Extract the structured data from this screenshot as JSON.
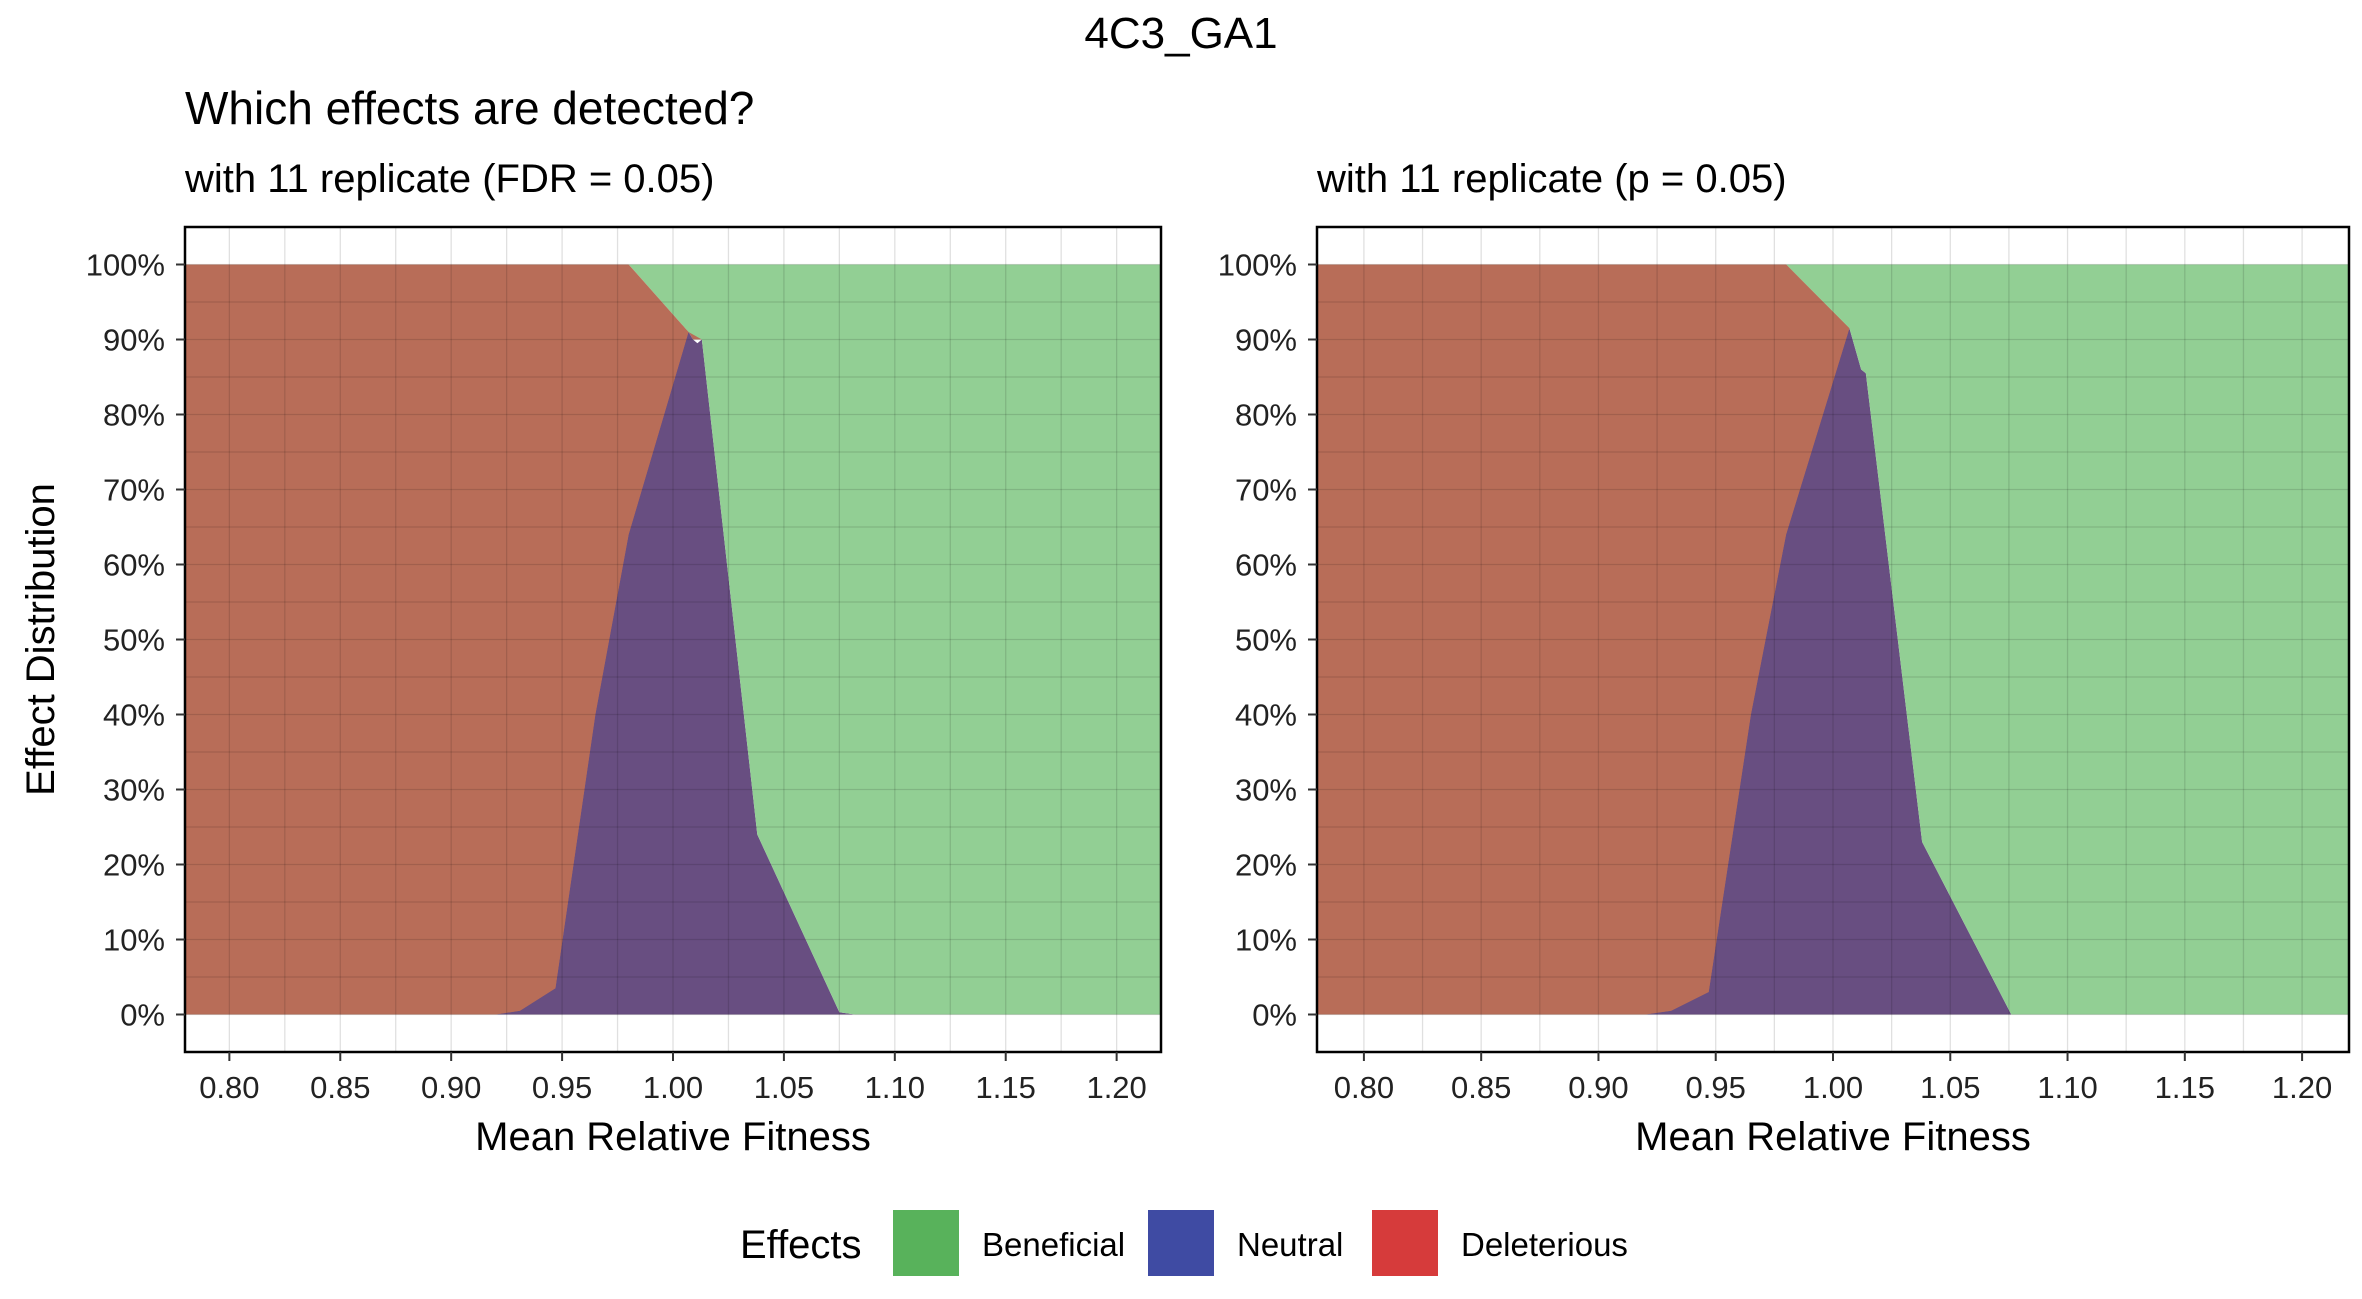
{
  "figure": {
    "title": "4C3_GA1",
    "subtitle": "Which effects are detected?"
  },
  "legend": {
    "title": "Effects",
    "placement": "bottom",
    "items": [
      {
        "label": "Beneficial",
        "color": "#58b25b"
      },
      {
        "label": "Neutral",
        "color": "#3f4ba3"
      },
      {
        "label": "Deleterious",
        "color": "#d63b3b"
      }
    ]
  },
  "chart_data": [
    {
      "type": "area",
      "title": "with 11 replicate (FDR = 0.05)",
      "xlabel": "Mean Relative Fitness",
      "ylabel": "Effect Distribution",
      "xlim": [
        0.78,
        1.22
      ],
      "ylim": [
        -0.05,
        1.05
      ],
      "xticks": [
        0.8,
        0.85,
        0.9,
        0.95,
        1.0,
        1.05,
        1.1,
        1.15,
        1.2
      ],
      "xtick_labels": [
        "0.80",
        "0.85",
        "0.90",
        "0.95",
        "1.00",
        "1.05",
        "1.10",
        "1.15",
        "1.20"
      ],
      "yticks": [
        0,
        0.1,
        0.2,
        0.3,
        0.4,
        0.5,
        0.6,
        0.7,
        0.8,
        0.9,
        1.0
      ],
      "ytick_labels": [
        "0%",
        "10%",
        "20%",
        "30%",
        "40%",
        "50%",
        "60%",
        "70%",
        "80%",
        "90%",
        "100%"
      ],
      "grid": true,
      "stacked": true,
      "series": [
        {
          "name": "Deleterious",
          "fill": "#b86d58",
          "points": [
            [
              0.78,
              1.0
            ],
            [
              0.8,
              1.0
            ],
            [
              0.85,
              1.0
            ],
            [
              0.9,
              1.0
            ],
            [
              0.92,
              1.0
            ],
            [
              0.931,
              1.0
            ],
            [
              0.947,
              1.0
            ],
            [
              0.965,
              1.0
            ],
            [
              0.98,
              0.997
            ],
            [
              1.007,
              0.91
            ],
            [
              1.009,
              0.9
            ],
            [
              1.013,
              0.9
            ],
            [
              1.038,
              0.9
            ],
            [
              1.075,
              0.9
            ],
            [
              1.22,
              0.9
            ]
          ],
          "lower": [
            [
              0.78,
              0.0
            ],
            [
              0.9,
              0.0
            ],
            [
              0.92,
              0.0
            ],
            [
              0.931,
              0.005
            ],
            [
              0.947,
              0.035
            ],
            [
              0.965,
              0.4
            ],
            [
              0.98,
              0.64
            ],
            [
              1.007,
              0.91
            ],
            [
              1.009,
              0.9
            ],
            [
              1.013,
              0.9
            ],
            [
              1.22,
              0.9
            ]
          ]
        },
        {
          "name": "Neutral",
          "fill": "#684e81",
          "points": [
            [
              0.92,
              0.0
            ],
            [
              0.931,
              0.005
            ],
            [
              0.947,
              0.035
            ],
            [
              0.965,
              0.4
            ],
            [
              0.98,
              0.64
            ],
            [
              1.007,
              0.91
            ],
            [
              1.009,
              0.9
            ],
            [
              1.011,
              0.895
            ],
            [
              1.013,
              0.9
            ],
            [
              1.038,
              0.24
            ],
            [
              1.075,
              0.003
            ],
            [
              1.082,
              0.0
            ]
          ]
        },
        {
          "name": "Beneficial",
          "fill": "#92cf94",
          "points": [
            [
              0.98,
              1.0
            ],
            [
              1.22,
              1.0
            ],
            [
              1.22,
              0.0
            ],
            [
              1.082,
              0.0
            ],
            [
              1.075,
              0.003
            ],
            [
              1.038,
              0.24
            ],
            [
              1.013,
              0.9
            ],
            [
              1.007,
              0.91
            ]
          ]
        }
      ]
    },
    {
      "type": "area",
      "title": "with 11 replicate (p = 0.05)",
      "xlabel": "Mean Relative Fitness",
      "ylabel": "",
      "xlim": [
        0.78,
        1.22
      ],
      "ylim": [
        -0.05,
        1.05
      ],
      "xticks": [
        0.8,
        0.85,
        0.9,
        0.95,
        1.0,
        1.05,
        1.1,
        1.15,
        1.2
      ],
      "xtick_labels": [
        "0.80",
        "0.85",
        "0.90",
        "0.95",
        "1.00",
        "1.05",
        "1.10",
        "1.15",
        "1.20"
      ],
      "yticks": [
        0,
        0.1,
        0.2,
        0.3,
        0.4,
        0.5,
        0.6,
        0.7,
        0.8,
        0.9,
        1.0
      ],
      "ytick_labels": [
        "0%",
        "10%",
        "20%",
        "30%",
        "40%",
        "50%",
        "60%",
        "70%",
        "80%",
        "90%",
        "100%"
      ],
      "grid": true,
      "stacked": true,
      "series": [
        {
          "name": "Deleterious",
          "fill": "#b86d58",
          "points": [
            [
              0.78,
              1.0
            ],
            [
              0.98,
              1.0
            ],
            [
              1.007,
              0.915
            ]
          ]
        },
        {
          "name": "Neutral",
          "fill": "#684e81",
          "points": [
            [
              0.92,
              0.0
            ],
            [
              0.931,
              0.005
            ],
            [
              0.947,
              0.03
            ],
            [
              0.965,
              0.4
            ],
            [
              0.98,
              0.64
            ],
            [
              1.007,
              0.915
            ],
            [
              1.012,
              0.86
            ],
            [
              1.014,
              0.855
            ],
            [
              1.038,
              0.23
            ],
            [
              1.076,
              0.0
            ]
          ]
        },
        {
          "name": "Beneficial",
          "fill": "#92cf94",
          "points": [
            [
              0.98,
              1.0
            ],
            [
              1.22,
              1.0
            ],
            [
              1.22,
              0.0
            ],
            [
              1.076,
              0.0
            ],
            [
              1.038,
              0.23
            ],
            [
              1.014,
              0.855
            ],
            [
              1.012,
              0.86
            ],
            [
              1.007,
              0.915
            ]
          ]
        }
      ]
    }
  ]
}
